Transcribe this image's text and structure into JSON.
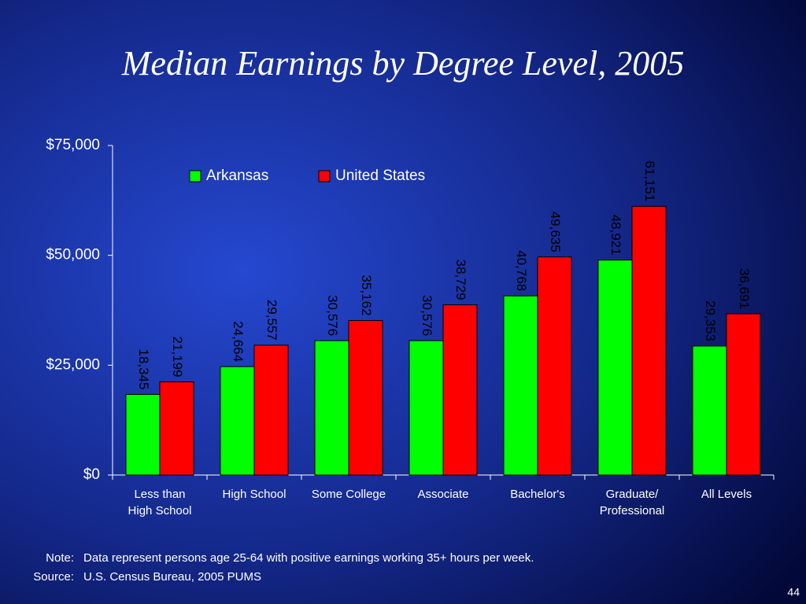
{
  "chart_data": {
    "type": "bar",
    "title": "Median Earnings by Degree Level, 2005",
    "categories": [
      [
        "Less than",
        "High School"
      ],
      [
        "High School"
      ],
      [
        "Some College"
      ],
      [
        "Associate"
      ],
      [
        "Bachelor's"
      ],
      [
        "Graduate/",
        "Professional"
      ],
      [
        "All Levels"
      ]
    ],
    "series": [
      {
        "name": "Arkansas",
        "color": "#00ff00",
        "values": [
          18345,
          24664,
          30576,
          30576,
          40768,
          48921,
          29353
        ],
        "value_labels": [
          "18,345",
          "24,664",
          "30,576",
          "30,576",
          "40,768",
          "48,921",
          "29,353"
        ]
      },
      {
        "name": "United States",
        "color": "#ff0000",
        "values": [
          21199,
          29557,
          35162,
          38729,
          49635,
          61151,
          36691
        ],
        "value_labels": [
          "21,199",
          "29,557",
          "35,162",
          "38,729",
          "49,635",
          "61,151",
          "36,691"
        ]
      }
    ],
    "ylim": [
      0,
      75000
    ],
    "yticks": [
      {
        "value": 0,
        "label": "$0"
      },
      {
        "value": 25000,
        "label": "$25,000"
      },
      {
        "value": 50000,
        "label": "$50,000"
      },
      {
        "value": 75000,
        "label": "$75,000"
      }
    ],
    "grid": false,
    "legend": "top"
  },
  "notes": [
    {
      "label": "Note:",
      "text": "Data represent persons age 25-64 with positive earnings working 35+ hours per week."
    },
    {
      "label": "Source:",
      "text": "U.S. Census Bureau, 2005 PUMS"
    }
  ],
  "page_number": "44"
}
